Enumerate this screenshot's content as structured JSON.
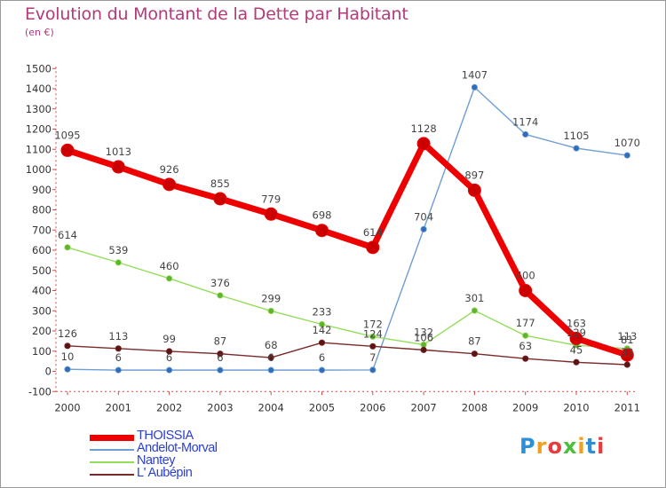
{
  "title": "Evolution du Montant de la Dette par Habitant",
  "unit": "(en €)",
  "logo": "Proxiti",
  "chart_data": {
    "type": "line",
    "x": [
      "2000",
      "2001",
      "2002",
      "2003",
      "2004",
      "2005",
      "2006",
      "2007",
      "2008",
      "2009",
      "2010",
      "2011"
    ],
    "ylim": [
      -100,
      1500
    ],
    "yticks": [
      -100,
      0,
      100,
      200,
      300,
      400,
      500,
      600,
      700,
      800,
      900,
      1000,
      1100,
      1200,
      1300,
      1400,
      1500
    ],
    "grid": false,
    "legend_position": "bottom-left",
    "series": [
      {
        "name": "THOISSIA",
        "color": "#ee0000",
        "values": [
          1095,
          1013,
          926,
          855,
          779,
          698,
          614,
          1128,
          897,
          400,
          163,
          81
        ]
      },
      {
        "name": "Andelot-Morval",
        "color": "#6e9ed4",
        "values": [
          10,
          6,
          6,
          6,
          6,
          6,
          7,
          704,
          1407,
          1174,
          1105,
          1070
        ]
      },
      {
        "name": "Nantey",
        "color": "#94dd5a",
        "values": [
          614,
          539,
          460,
          376,
          299,
          233,
          172,
          132,
          301,
          177,
          129,
          113
        ]
      },
      {
        "name": "L' Aubépin",
        "color": "#7a2a2a",
        "values": [
          126,
          113,
          99,
          87,
          68,
          142,
          124,
          106,
          87,
          63,
          45,
          33
        ]
      }
    ]
  }
}
